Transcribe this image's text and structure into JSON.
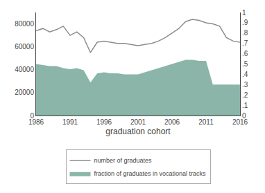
{
  "chart_data": {
    "type": "line",
    "x": [
      1986,
      1987,
      1988,
      1989,
      1990,
      1991,
      1992,
      1993,
      1994,
      1995,
      1996,
      1997,
      1998,
      1999,
      2000,
      2001,
      2002,
      2003,
      2004,
      2005,
      2006,
      2007,
      2008,
      2009,
      2010,
      2011,
      2012,
      2013,
      2014,
      2015,
      2016
    ],
    "xlabel": "graduation cohort",
    "xlim": [
      1986,
      2016
    ],
    "xticks": [
      1986,
      1991,
      1996,
      2001,
      2006,
      2011,
      2016
    ],
    "ylim": [
      0,
      90000
    ],
    "yticks": [
      0,
      20000,
      40000,
      60000,
      80000
    ],
    "y2lim": [
      0,
      1.0
    ],
    "y2ticks": [
      0,
      {
        "value": 0.1,
        "label": ".1"
      },
      {
        "value": 0.2,
        "label": ".2"
      },
      {
        "value": 0.3,
        "label": ".3"
      },
      {
        "value": 0.4,
        "label": ".4"
      },
      {
        "value": 0.5,
        "label": ".5"
      },
      {
        "value": 0.6,
        "label": ".6"
      },
      {
        "value": 0.7,
        "label": ".7"
      },
      {
        "value": 0.8,
        "label": ".8"
      },
      {
        "value": 0.9,
        "label": ".9"
      },
      1
    ],
    "grid": false,
    "legend": "bottom",
    "series": [
      {
        "name": "number of graduates",
        "type": "line",
        "color": "#8c8c8c",
        "values": [
          74000,
          76000,
          73000,
          75000,
          78000,
          70000,
          73000,
          68000,
          55000,
          64000,
          65000,
          64000,
          63000,
          63000,
          62000,
          61000,
          62000,
          63000,
          65000,
          68000,
          72000,
          76000,
          82000,
          84000,
          83000,
          81000,
          80000,
          78000,
          68000,
          65000,
          64000
        ]
      },
      {
        "name": "fraction of graduates in vocational tracks",
        "type": "area",
        "color": "#8ab5a8",
        "axis": "y2",
        "values": [
          0.5,
          0.49,
          0.48,
          0.48,
          0.46,
          0.45,
          0.46,
          0.44,
          0.32,
          0.41,
          0.42,
          0.41,
          0.41,
          0.4,
          0.4,
          0.4,
          0.42,
          0.44,
          0.46,
          0.48,
          0.5,
          0.52,
          0.54,
          0.54,
          0.53,
          0.53,
          0.3,
          0.3,
          0.3,
          0.3,
          0.3
        ]
      }
    ]
  }
}
